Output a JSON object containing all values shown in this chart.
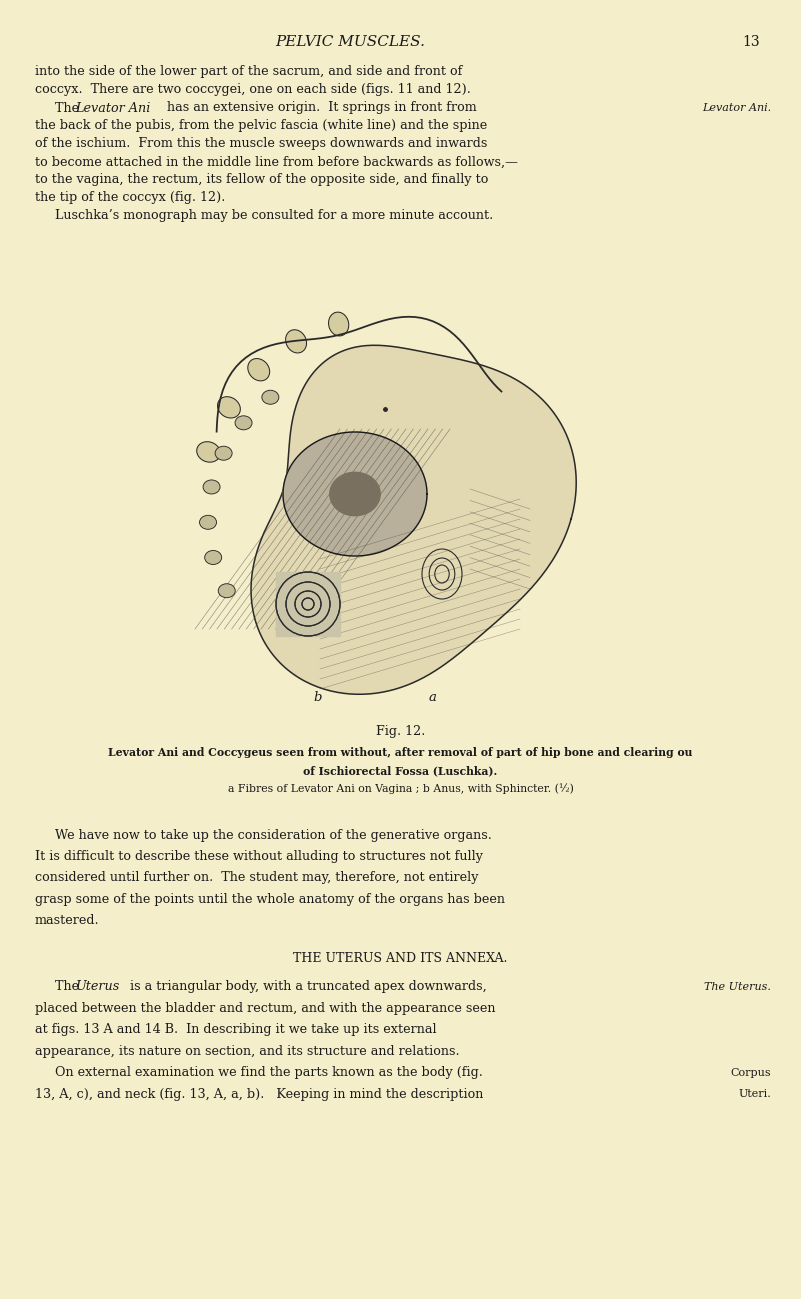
{
  "bg_color": "#f5eecb",
  "page_width": 8.01,
  "page_height": 12.99,
  "header_title": "PELVIC MUSCLES.",
  "header_page": "13",
  "text_color": "#1a1a1a",
  "section_heading": "THE UTERUS AND ITS ANNEXA.",
  "sidebar_levator": "Levator Ani.",
  "sidebar_uterus": "The Uterus.",
  "sidebar_corpus_1": "Corpus",
  "sidebar_corpus_2": "Uteri."
}
